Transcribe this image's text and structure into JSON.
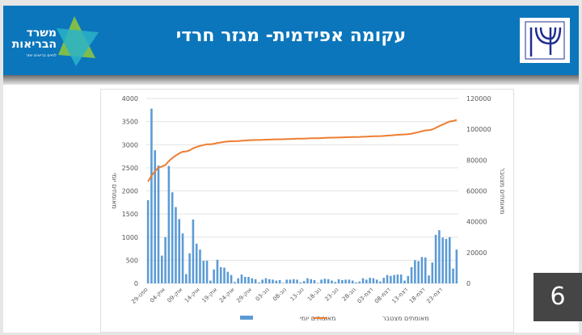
{
  "header": {
    "title": "עקומה אפידמית- מגזר חרדי",
    "logo_text": "משרד הבריאות",
    "logo_subtext": "לחיים בריאים יותר",
    "emblem_text": "משרד הבריאות"
  },
  "colors": {
    "header_bg": "#0b76bc",
    "bars": "#5b9bd5",
    "line": "#ed7d31",
    "page_number_bg": "#454545"
  },
  "page_number": "6",
  "chart_data": {
    "type": "bar+line",
    "title": "",
    "ylabel_left": "מאומתים יומי",
    "ylabel_right": "מאומתים מצטבר",
    "ylim_left": [
      0,
      4000
    ],
    "ylim_right": [
      0,
      120000
    ],
    "yticks_left": [
      "0",
      "500",
      "1000",
      "1500",
      "2000",
      "2500",
      "3000",
      "3500",
      "4000"
    ],
    "yticks_right": [
      "0",
      "20000",
      "40000",
      "60000",
      "80000",
      "100000",
      "120000"
    ],
    "x_tick_labels": [
      "29-ספט",
      "04-אוק",
      "09-אוק",
      "14-אוק",
      "19-אוק",
      "24-אוק",
      "29-אוק",
      "03-נוב",
      "08-נוב",
      "13-נוב",
      "18-נוב",
      "23-נוב",
      "28-נוב",
      "03-דצמ",
      "08-דצמ",
      "13-דצמ",
      "18-דצמ",
      "23-דצמ"
    ],
    "x_range": [
      "29-ספט",
      "27-דצמ"
    ],
    "grid": true,
    "legend_position": "bottom",
    "series": [
      {
        "name": "מאומתים יומי",
        "type": "bar",
        "axis": "left",
        "values": [
          1800,
          3780,
          2880,
          2550,
          600,
          1000,
          2540,
          1970,
          1650,
          1390,
          1080,
          200,
          650,
          1380,
          860,
          730,
          490,
          490,
          60,
          300,
          510,
          350,
          340,
          250,
          180,
          30,
          110,
          190,
          140,
          140,
          110,
          90,
          20,
          80,
          110,
          90,
          80,
          60,
          70,
          10,
          80,
          80,
          90,
          80,
          20,
          50,
          110,
          90,
          70,
          10,
          80,
          100,
          90,
          60,
          30,
          90,
          70,
          80,
          80,
          60,
          20,
          40,
          110,
          80,
          120,
          110,
          80,
          40,
          120,
          180,
          160,
          180,
          190,
          190,
          60,
          160,
          350,
          500,
          480,
          570,
          560,
          170,
          450,
          1050,
          1150,
          990,
          960,
          1000,
          320,
          730
        ]
      },
      {
        "name": "מאומתים מצטבר",
        "type": "line",
        "axis": "right",
        "values": [
          66000,
          69780,
          72660,
          75210,
          75810,
          76810,
          79350,
          81320,
          82970,
          84360,
          85440,
          85640,
          86290,
          87670,
          88530,
          89260,
          89750,
          90240,
          90300,
          90600,
          91110,
          91460,
          91800,
          92050,
          92230,
          92260,
          92370,
          92560,
          92700,
          92840,
          92950,
          93040,
          93060,
          93140,
          93250,
          93340,
          93420,
          93480,
          93550,
          93560,
          93640,
          93720,
          93810,
          93890,
          93910,
          93960,
          94070,
          94160,
          94230,
          94240,
          94320,
          94420,
          94510,
          94570,
          94600,
          94690,
          94760,
          94840,
          94920,
          94980,
          95000,
          95040,
          95150,
          95230,
          95350,
          95460,
          95540,
          95580,
          95700,
          95880,
          96040,
          96220,
          96410,
          96600,
          96660,
          96820,
          97170,
          97670,
          98150,
          98720,
          99280,
          99450,
          99900,
          100950,
          102100,
          103090,
          104050,
          105050,
          105370,
          106100
        ]
      }
    ]
  }
}
